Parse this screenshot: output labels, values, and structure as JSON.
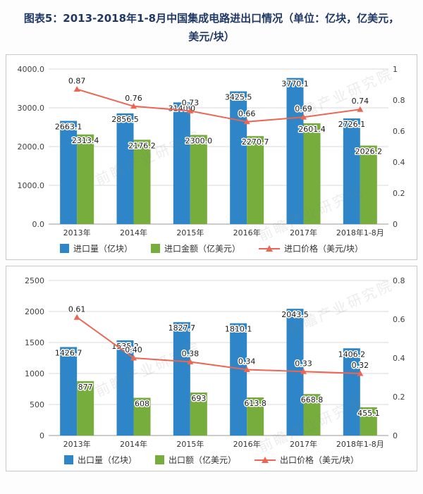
{
  "title": "图表5：2013-2018年1-8月中国集成电路进出口情况（单位：亿块，亿美元，美元/块）",
  "watermark": "前瞻产业研究院",
  "colors": {
    "title": "#1f3864",
    "bar_blue": "#2e86c8",
    "bar_green": "#76ad3c",
    "line_red": "#ec6653",
    "grid": "#d9d9d9",
    "axis_line": "#9a9a9a",
    "axis_text": "#404040",
    "label_text": "#1a1a1a"
  },
  "chart_data": [
    {
      "type": "bar",
      "subtype": "bar+line, dual y-axis",
      "categories": [
        "2013年",
        "2014年",
        "2015年",
        "2016年",
        "2017年",
        "2018年1-8月"
      ],
      "series": [
        {
          "name": "进口量（亿块）",
          "kind": "bar",
          "axis": "left",
          "color_key": "bar_blue",
          "values": [
            2663.1,
            2856.5,
            3140.0,
            3425.5,
            3770.1,
            2726.1
          ],
          "labels": [
            "2663.1",
            "2856.5",
            "3140.0",
            "3425.5",
            "3770.1",
            "2726.1"
          ]
        },
        {
          "name": "进口金额（亿美元）",
          "kind": "bar",
          "axis": "left",
          "color_key": "bar_green",
          "values": [
            2313.4,
            2176.2,
            2300.0,
            2270.7,
            2601.4,
            2026.2
          ],
          "labels": [
            "2313.4",
            "2176.2",
            "2300.0",
            "2270.7",
            "2601.4",
            "2026.2"
          ]
        },
        {
          "name": "进口价格（美元/块）",
          "kind": "line",
          "axis": "right",
          "color_key": "line_red",
          "values": [
            0.87,
            0.76,
            0.73,
            0.66,
            0.69,
            0.74
          ],
          "labels": [
            "0.87",
            "0.76",
            "0.73",
            "0.66",
            "0.69",
            "0.74"
          ]
        }
      ],
      "left_axis": {
        "min": 0,
        "max": 4000,
        "ticks": [
          0,
          1000,
          2000,
          3000,
          4000
        ],
        "tick_labels": [
          "0.0",
          "1000.0",
          "2000.0",
          "3000.0",
          "4000.0"
        ]
      },
      "right_axis": {
        "min": 0,
        "max": 1,
        "ticks": [
          0,
          0.2,
          0.4,
          0.6,
          0.8,
          1
        ],
        "tick_labels": [
          "0",
          "0.2",
          "0.4",
          "0.6",
          "0.8",
          "1"
        ]
      },
      "grid": true,
      "legend_position": "bottom"
    },
    {
      "type": "bar",
      "subtype": "bar+line, dual y-axis",
      "categories": [
        "2013年",
        "2014年",
        "2015年",
        "2016年",
        "2017年",
        "2018年1-8月"
      ],
      "series": [
        {
          "name": "出口量（亿块）",
          "kind": "bar",
          "axis": "left",
          "color_key": "bar_blue",
          "values": [
            1426.7,
            1535.2,
            1827.7,
            1810.1,
            2043.5,
            1406.2
          ],
          "labels": [
            "1426.7",
            "1535.2",
            "1827.7",
            "1810.1",
            "2043.5",
            "1406.2"
          ]
        },
        {
          "name": "出口额（亿美元）",
          "kind": "bar",
          "axis": "left",
          "color_key": "bar_green",
          "values": [
            877,
            608,
            693,
            613.8,
            668.8,
            455.1
          ],
          "labels": [
            "877",
            "608",
            "693",
            "613.8",
            "668.8",
            "455.1"
          ]
        },
        {
          "name": "出口价格（美元/块）",
          "kind": "line",
          "axis": "right",
          "color_key": "line_red",
          "values": [
            0.61,
            0.4,
            0.38,
            0.34,
            0.33,
            0.32
          ],
          "labels": [
            "0.61",
            "0.40",
            "0.38",
            "0.34",
            "0.33",
            "0.32"
          ]
        }
      ],
      "left_axis": {
        "min": 0,
        "max": 2500,
        "ticks": [
          0,
          500,
          1000,
          1500,
          2000,
          2500
        ],
        "tick_labels": [
          "0",
          "500",
          "1000",
          "1500",
          "2000",
          "2500"
        ]
      },
      "right_axis": {
        "min": 0,
        "max": 0.8,
        "ticks": [
          0,
          0.2,
          0.4,
          0.6,
          0.8
        ],
        "tick_labels": [
          "0",
          "0.2",
          "0.4",
          "0.6",
          "0.8"
        ]
      },
      "grid": true,
      "legend_position": "bottom"
    }
  ]
}
